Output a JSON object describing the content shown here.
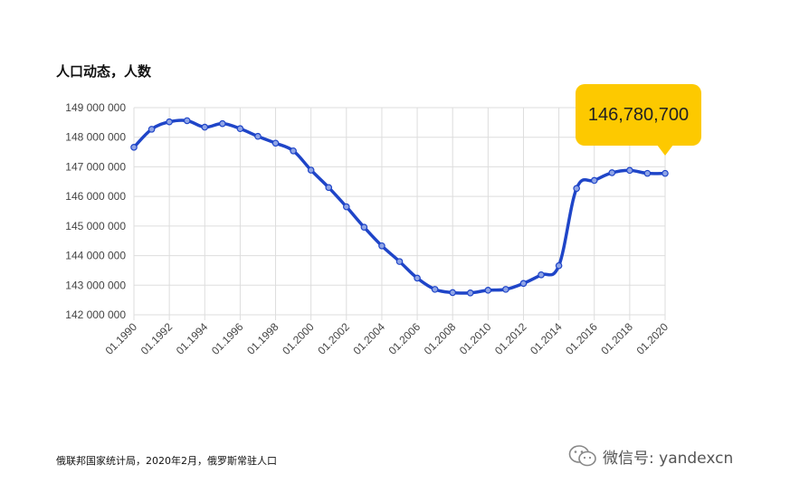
{
  "chart_data": {
    "type": "line",
    "title": "人口动态，人数",
    "ylim": [
      142000000,
      149000000
    ],
    "yticks": [
      142000000,
      143000000,
      144000000,
      145000000,
      146000000,
      147000000,
      148000000,
      149000000
    ],
    "ytick_labels": [
      "142 000 000",
      "143 000 000",
      "144 000 000",
      "145 000 000",
      "146 000 000",
      "147 000 000",
      "148 000 000",
      "149 000 000"
    ],
    "x": [
      "01.1990",
      "01.1991",
      "01.1992",
      "01.1993",
      "01.1994",
      "01.1995",
      "01.1996",
      "01.1997",
      "01.1998",
      "01.1999",
      "01.2000",
      "01.2001",
      "01.2002",
      "01.2003",
      "01.2004",
      "01.2005",
      "01.2006",
      "01.2007",
      "01.2008",
      "01.2009",
      "01.2010",
      "01.2011",
      "01.2012",
      "01.2013",
      "01.2014",
      "01.2015",
      "01.2016",
      "01.2017",
      "01.2018",
      "01.2019",
      "01.2020"
    ],
    "xtick_labels": [
      "01.1990",
      "01.1992",
      "01.1994",
      "01.1996",
      "01.1998",
      "01.2000",
      "01.2002",
      "01.2004",
      "01.2006",
      "01.2008",
      "01.2010",
      "01.2012",
      "01.2014",
      "01.2016",
      "01.2018",
      "01.2020"
    ],
    "values": [
      147660000,
      148270000,
      148520000,
      148560000,
      148340000,
      148460000,
      148290000,
      148030000,
      147800000,
      147540000,
      146890000,
      146300000,
      145650000,
      144960000,
      144330000,
      143800000,
      143240000,
      142860000,
      142750000,
      142740000,
      142830000,
      142860000,
      143060000,
      143350000,
      143660000,
      146270000,
      146540000,
      146800000,
      146880000,
      146780000,
      146780000
    ],
    "grid": true,
    "line_color": "#1f45c8",
    "highlight": {
      "label": "146,780,700",
      "color": "#fdc900"
    }
  },
  "footer": {
    "source": "俄联邦国家统计局，2020年2月，俄罗斯常驻人口",
    "watermark": "微信号: yandexcn",
    "watermark_icon": "wechat-icon"
  }
}
